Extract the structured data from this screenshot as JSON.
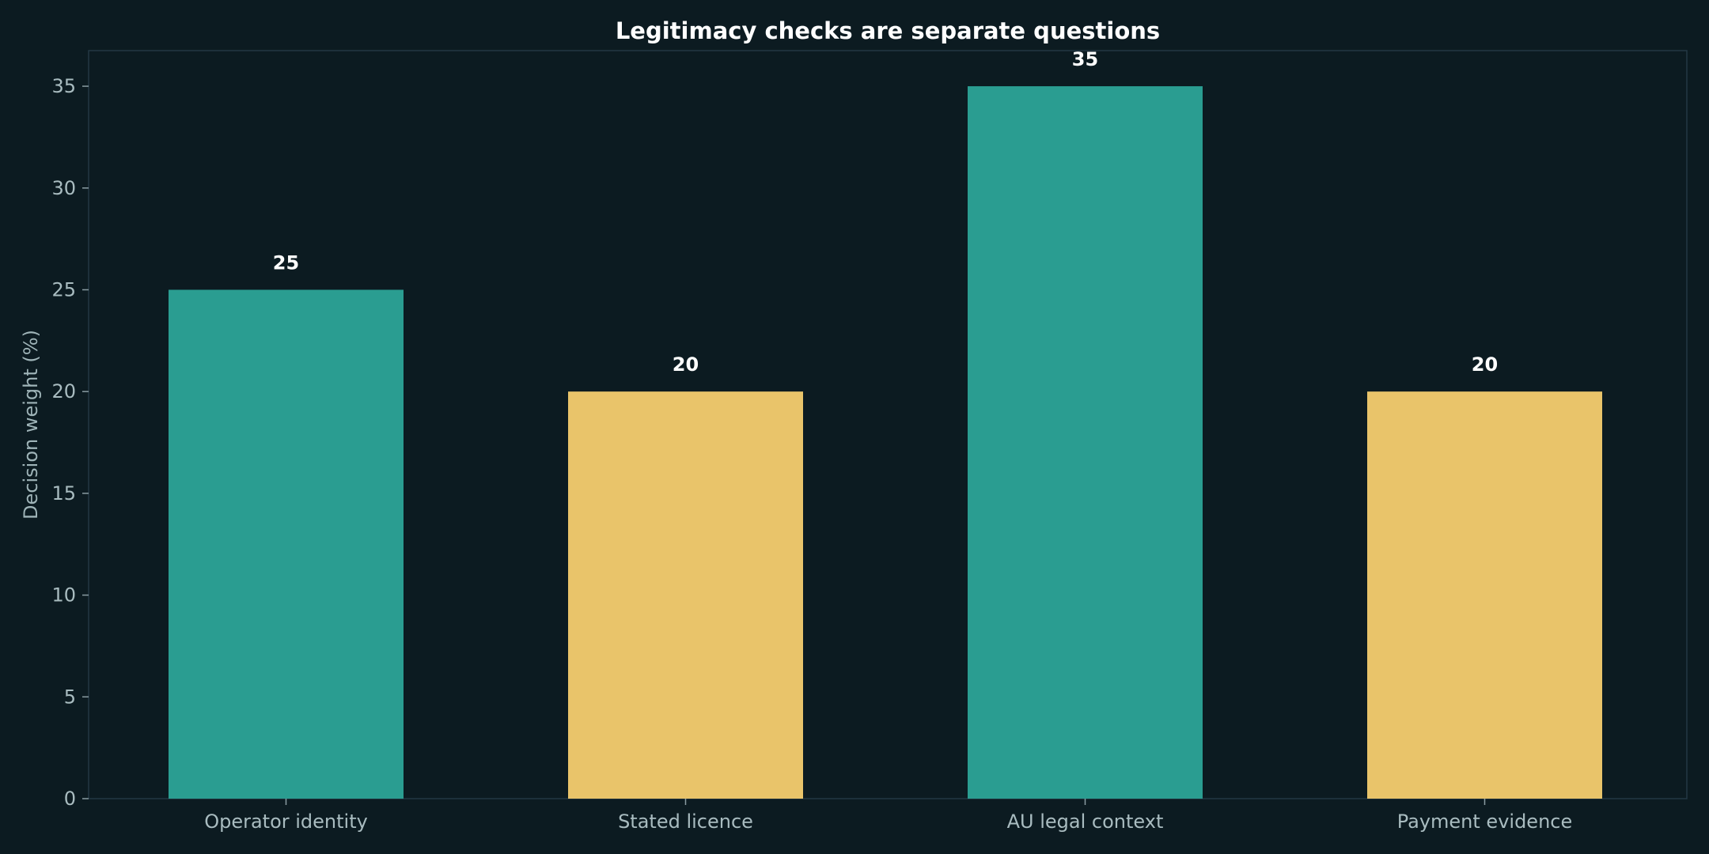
{
  "colors": {
    "background": "#0c1b21",
    "frame": "#233844",
    "tick": "#8a9ca2",
    "teal": "#2a9d91",
    "gold": "#e9c46a"
  },
  "chart_data": {
    "type": "bar",
    "title": "Legitimacy checks are separate questions",
    "xlabel": "",
    "ylabel": "Decision weight (%)",
    "ylim": [
      0,
      36.75
    ],
    "yticks": [
      0,
      5,
      10,
      15,
      20,
      25,
      30,
      35
    ],
    "categories": [
      "Operator identity",
      "Stated licence",
      "AU legal context",
      "Payment evidence"
    ],
    "values": [
      25,
      20,
      35,
      20
    ],
    "bar_colors": [
      "#2a9d91",
      "#e9c46a",
      "#2a9d91",
      "#e9c46a"
    ],
    "data_labels": [
      "25",
      "20",
      "35",
      "20"
    ],
    "grid": false,
    "legend": "none"
  }
}
